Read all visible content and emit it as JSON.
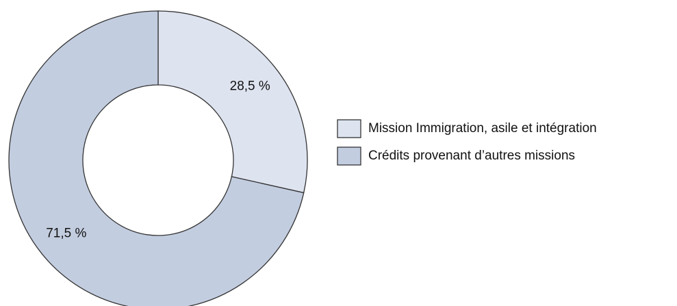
{
  "chart_data": {
    "type": "donut",
    "categories": [
      "Mission Immigration, asile et intégration",
      "Crédits provenant d’autres missions"
    ],
    "values": [
      28.5,
      71.5
    ],
    "value_labels": [
      "28,5 %",
      "71,5 %"
    ],
    "colors": [
      "#dde3ef",
      "#c3cde0"
    ],
    "legend": "right"
  }
}
